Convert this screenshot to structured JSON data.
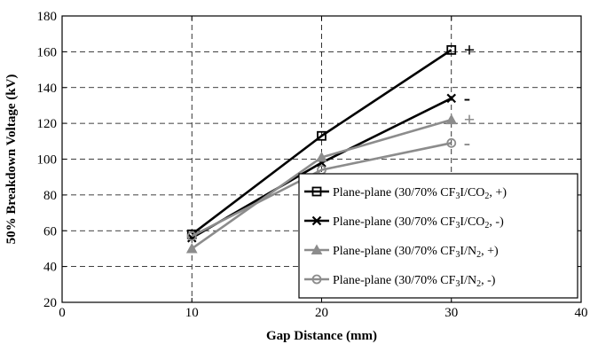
{
  "chart_data": {
    "type": "line",
    "title": "",
    "xlabel": "Gap Distance (mm)",
    "ylabel": "50% Breakdown Voltage (kV)",
    "xlim": [
      0,
      40
    ],
    "ylim": [
      20,
      180
    ],
    "xticks": [
      0,
      10,
      20,
      30,
      40
    ],
    "yticks": [
      20,
      40,
      60,
      80,
      100,
      120,
      140,
      160,
      180
    ],
    "grid": true,
    "legend_position": "bottom-right",
    "series": [
      {
        "name_parts": [
          "Plane-plane (30/70% CF",
          "3",
          "I/CO",
          "2",
          ", +)"
        ],
        "color": "#000000",
        "marker": "square",
        "x": [
          10,
          20,
          30
        ],
        "y": [
          58,
          113,
          161
        ]
      },
      {
        "name_parts": [
          "Plane-plane (30/70% CF",
          "3",
          "I/CO",
          "2",
          ", -)"
        ],
        "color": "#000000",
        "marker": "x",
        "x": [
          10,
          20,
          30
        ],
        "y": [
          56,
          98,
          134
        ]
      },
      {
        "name_parts": [
          "Plane-plane (30/70% CF",
          "3",
          "I/N",
          "2",
          ", +)"
        ],
        "color": "#8c8c8c",
        "marker": "triangle",
        "x": [
          10,
          20,
          30
        ],
        "y": [
          50,
          101,
          122
        ]
      },
      {
        "name_parts": [
          "Plane-plane (30/70% CF",
          "3",
          "I/N",
          "2",
          ", -)"
        ],
        "color": "#8c8c8c",
        "marker": "circle",
        "x": [
          10,
          20,
          30
        ],
        "y": [
          57,
          94,
          109
        ]
      }
    ],
    "annotations": [
      {
        "text": "+",
        "series": 0,
        "color": "#000000"
      },
      {
        "text": "-",
        "series": 1,
        "color": "#000000"
      },
      {
        "text": "+",
        "series": 2,
        "color": "#8c8c8c"
      },
      {
        "text": "-",
        "series": 3,
        "color": "#8c8c8c"
      }
    ]
  }
}
